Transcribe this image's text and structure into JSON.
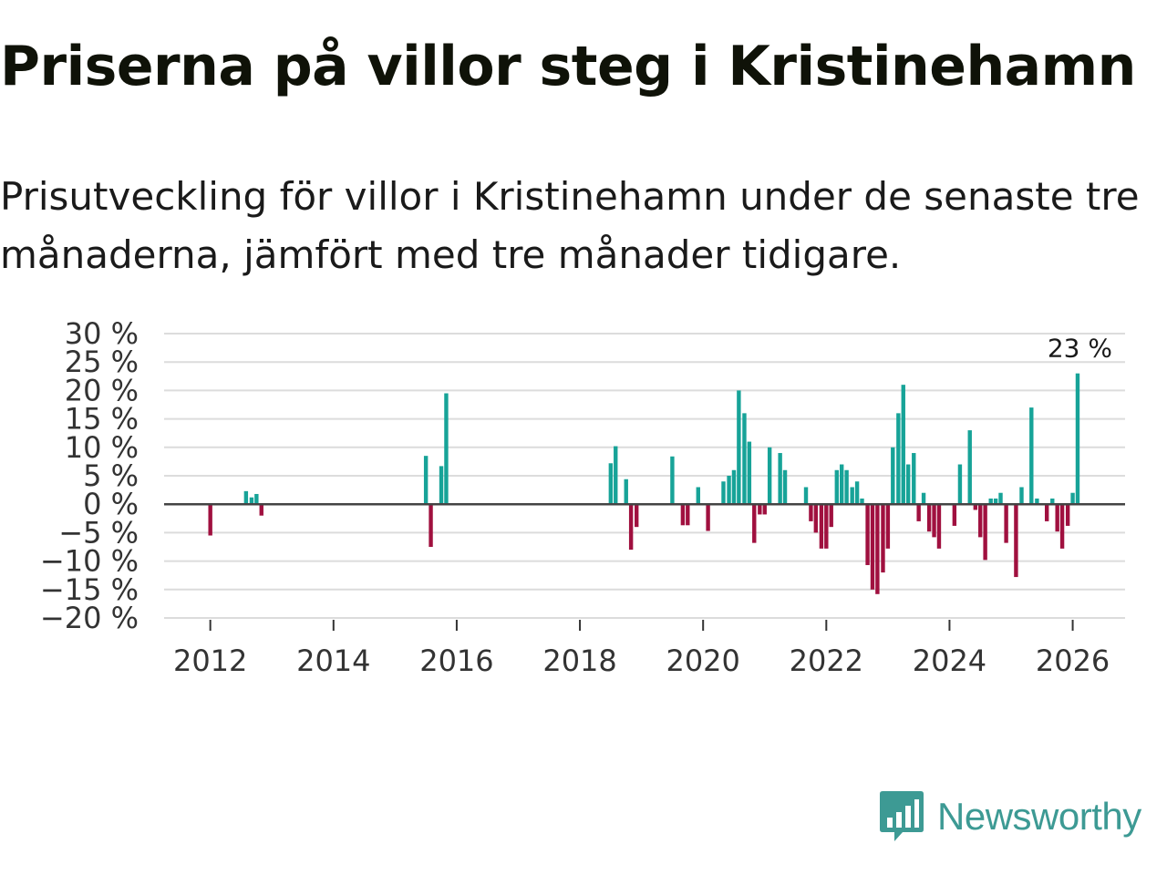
{
  "header": {
    "title": "Priserna på villor steg i Kristinehamn",
    "subtitle": "Prisutveckling för villor i Kristinehamn under de senaste tre månaderna, jämfört med tre månader tidigare."
  },
  "brand": {
    "name": "Newsworthy"
  },
  "colors": {
    "positive": "#17a398",
    "negative": "#a0103f",
    "grid": "#dcdcdc",
    "zero": "#444444",
    "brand": "#3d9a94"
  },
  "chart_data": {
    "type": "bar",
    "title": "Priserna på villor steg i Kristinehamn",
    "subtitle": "Prisutveckling för villor i Kristinehamn under de senaste tre månaderna, jämfört med tre månader tidigare.",
    "xlabel": "",
    "ylabel": "",
    "unit": "%",
    "ylim": [
      -20,
      30
    ],
    "yticks": [
      30,
      25,
      20,
      15,
      10,
      5,
      0,
      -5,
      -10,
      -15,
      -20
    ],
    "ytick_labels": [
      "30 %",
      "25 %",
      "20 %",
      "15 %",
      "10 %",
      "5 %",
      "0 %",
      "−5 %",
      "−10 %",
      "−15 %",
      "−20 %"
    ],
    "xlim": [
      2011.25,
      2026.85
    ],
    "xticks": [
      2012,
      2014,
      2016,
      2018,
      2020,
      2022,
      2024,
      2026
    ],
    "xtick_labels": [
      "2012",
      "2014",
      "2016",
      "2018",
      "2020",
      "2022",
      "2024",
      "2026"
    ],
    "grid": true,
    "last_value_label": "23 %",
    "series": [
      {
        "name": "Prisutveckling",
        "points": [
          {
            "x": 2012.0,
            "y": -5.5
          },
          {
            "x": 2012.58,
            "y": 2.3
          },
          {
            "x": 2012.67,
            "y": 1.2
          },
          {
            "x": 2012.75,
            "y": 1.8
          },
          {
            "x": 2012.83,
            "y": -2.0
          },
          {
            "x": 2015.5,
            "y": 8.5
          },
          {
            "x": 2015.58,
            "y": -7.5
          },
          {
            "x": 2015.75,
            "y": 6.7
          },
          {
            "x": 2015.83,
            "y": 19.5
          },
          {
            "x": 2018.5,
            "y": 7.2
          },
          {
            "x": 2018.58,
            "y": 10.2
          },
          {
            "x": 2018.75,
            "y": 4.4
          },
          {
            "x": 2018.83,
            "y": -8.0
          },
          {
            "x": 2018.92,
            "y": -4.0
          },
          {
            "x": 2019.5,
            "y": 8.4
          },
          {
            "x": 2019.67,
            "y": -3.7
          },
          {
            "x": 2019.75,
            "y": -3.7
          },
          {
            "x": 2019.92,
            "y": 3.0
          },
          {
            "x": 2020.08,
            "y": -4.7
          },
          {
            "x": 2020.33,
            "y": 4.0
          },
          {
            "x": 2020.42,
            "y": 5.0
          },
          {
            "x": 2020.5,
            "y": 6.0
          },
          {
            "x": 2020.58,
            "y": 20.0
          },
          {
            "x": 2020.67,
            "y": 16.0
          },
          {
            "x": 2020.75,
            "y": 11.0
          },
          {
            "x": 2020.83,
            "y": -6.8
          },
          {
            "x": 2020.92,
            "y": -1.8
          },
          {
            "x": 2021.0,
            "y": -1.8
          },
          {
            "x": 2021.08,
            "y": 10.0
          },
          {
            "x": 2021.25,
            "y": 9.0
          },
          {
            "x": 2021.33,
            "y": 6.0
          },
          {
            "x": 2021.67,
            "y": 3.0
          },
          {
            "x": 2021.75,
            "y": -3.0
          },
          {
            "x": 2021.83,
            "y": -5.0
          },
          {
            "x": 2021.92,
            "y": -7.8
          },
          {
            "x": 2022.0,
            "y": -7.8
          },
          {
            "x": 2022.08,
            "y": -4.0
          },
          {
            "x": 2022.17,
            "y": 6.0
          },
          {
            "x": 2022.25,
            "y": 7.0
          },
          {
            "x": 2022.33,
            "y": 6.0
          },
          {
            "x": 2022.42,
            "y": 3.0
          },
          {
            "x": 2022.5,
            "y": 4.0
          },
          {
            "x": 2022.58,
            "y": 1.0
          },
          {
            "x": 2022.67,
            "y": -10.7
          },
          {
            "x": 2022.75,
            "y": -15.0
          },
          {
            "x": 2022.83,
            "y": -15.8
          },
          {
            "x": 2022.92,
            "y": -12.0
          },
          {
            "x": 2023.0,
            "y": -7.8
          },
          {
            "x": 2023.08,
            "y": 10.0
          },
          {
            "x": 2023.17,
            "y": 16.0
          },
          {
            "x": 2023.25,
            "y": 21.0
          },
          {
            "x": 2023.33,
            "y": 7.0
          },
          {
            "x": 2023.42,
            "y": 9.0
          },
          {
            "x": 2023.5,
            "y": -3.0
          },
          {
            "x": 2023.58,
            "y": 2.0
          },
          {
            "x": 2023.67,
            "y": -4.8
          },
          {
            "x": 2023.75,
            "y": -5.8
          },
          {
            "x": 2023.83,
            "y": -7.8
          },
          {
            "x": 2024.08,
            "y": -3.8
          },
          {
            "x": 2024.17,
            "y": 7.0
          },
          {
            "x": 2024.33,
            "y": 13.0
          },
          {
            "x": 2024.42,
            "y": -1.0
          },
          {
            "x": 2024.5,
            "y": -5.8
          },
          {
            "x": 2024.58,
            "y": -9.8
          },
          {
            "x": 2024.67,
            "y": 1.0
          },
          {
            "x": 2024.75,
            "y": 1.0
          },
          {
            "x": 2024.83,
            "y": 2.0
          },
          {
            "x": 2024.92,
            "y": -6.8
          },
          {
            "x": 2025.08,
            "y": -12.8
          },
          {
            "x": 2025.17,
            "y": 3.0
          },
          {
            "x": 2025.33,
            "y": 17.0
          },
          {
            "x": 2025.42,
            "y": 1.0
          },
          {
            "x": 2025.58,
            "y": -3.0
          },
          {
            "x": 2025.67,
            "y": 1.0
          },
          {
            "x": 2025.75,
            "y": -4.8
          },
          {
            "x": 2025.83,
            "y": -7.8
          },
          {
            "x": 2025.92,
            "y": -3.8
          },
          {
            "x": 2026.0,
            "y": 2.0
          },
          {
            "x": 2026.08,
            "y": 23.0
          }
        ]
      }
    ]
  }
}
